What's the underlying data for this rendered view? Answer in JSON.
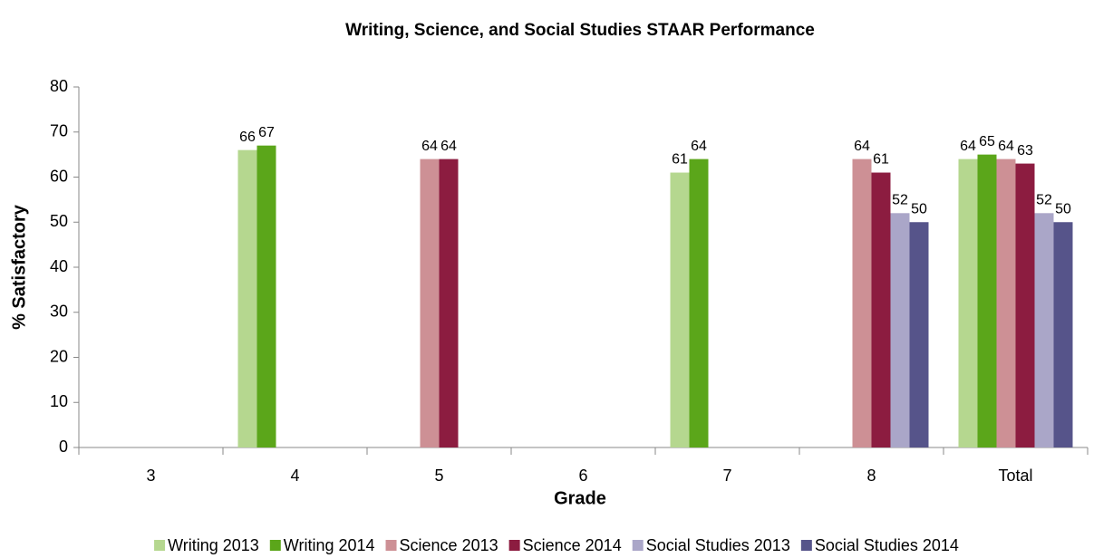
{
  "chart_data": {
    "type": "bar",
    "title": "Writing, Science, and Social Studies STAAR Performance",
    "x_label": "Grade",
    "y_label": "% Satisfactory",
    "categories": [
      "3",
      "4",
      "5",
      "6",
      "7",
      "8",
      "Total"
    ],
    "series": [
      {
        "name": "Writing 2013",
        "color": "#b5d78f",
        "values": [
          null,
          66,
          null,
          null,
          61,
          null,
          64
        ]
      },
      {
        "name": "Writing 2014",
        "color": "#5ba61a",
        "values": [
          null,
          67,
          null,
          null,
          64,
          null,
          65
        ]
      },
      {
        "name": "Science 2013",
        "color": "#cd9095",
        "values": [
          null,
          null,
          64,
          null,
          null,
          64,
          64
        ]
      },
      {
        "name": "Science 2014",
        "color": "#8c1c40",
        "values": [
          null,
          null,
          64,
          null,
          null,
          61,
          63
        ]
      },
      {
        "name": "Social Studies 2013",
        "color": "#aaa6c8",
        "values": [
          null,
          null,
          null,
          null,
          null,
          52,
          52
        ]
      },
      {
        "name": "Social Studies 2014",
        "color": "#56548a",
        "values": [
          null,
          null,
          null,
          null,
          null,
          50,
          50
        ]
      }
    ],
    "ylim": [
      0,
      80
    ],
    "yticks": [
      0,
      10,
      20,
      30,
      40,
      50,
      60,
      70,
      80
    ],
    "legend": "bottom"
  }
}
